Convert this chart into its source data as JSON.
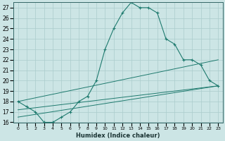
{
  "xlabel": "Humidex (Indice chaleur)",
  "bg_color": "#cce5e5",
  "grid_color": "#aacccc",
  "line_color": "#1e7a6e",
  "xlim": [
    -0.5,
    23.5
  ],
  "ylim": [
    16,
    27.5
  ],
  "yticks": [
    16,
    17,
    18,
    19,
    20,
    21,
    22,
    23,
    24,
    25,
    26,
    27
  ],
  "xticks": [
    0,
    1,
    2,
    3,
    4,
    5,
    6,
    7,
    8,
    9,
    10,
    11,
    12,
    13,
    14,
    15,
    16,
    17,
    18,
    19,
    20,
    21,
    22,
    23
  ],
  "series_main": {
    "x": [
      0,
      1,
      2,
      3,
      4,
      5,
      6,
      7,
      8,
      9,
      10,
      11,
      12,
      13,
      14,
      15,
      16,
      17,
      18,
      19,
      20,
      21,
      22,
      23
    ],
    "y": [
      18.0,
      17.5,
      17.0,
      16.0,
      16.0,
      16.5,
      17.0,
      18.0,
      18.5,
      20.0,
      23.0,
      25.0,
      26.5,
      27.5,
      27.0,
      27.0,
      26.5,
      24.0,
      23.5,
      22.0,
      22.0,
      21.5,
      20.0,
      19.5
    ]
  },
  "series_line1": {
    "x": [
      0,
      23
    ],
    "y": [
      18.0,
      22.0
    ]
  },
  "series_line2": {
    "x": [
      0,
      23
    ],
    "y": [
      17.2,
      19.5
    ]
  },
  "series_line3": {
    "x": [
      0,
      23
    ],
    "y": [
      16.5,
      19.5
    ]
  }
}
